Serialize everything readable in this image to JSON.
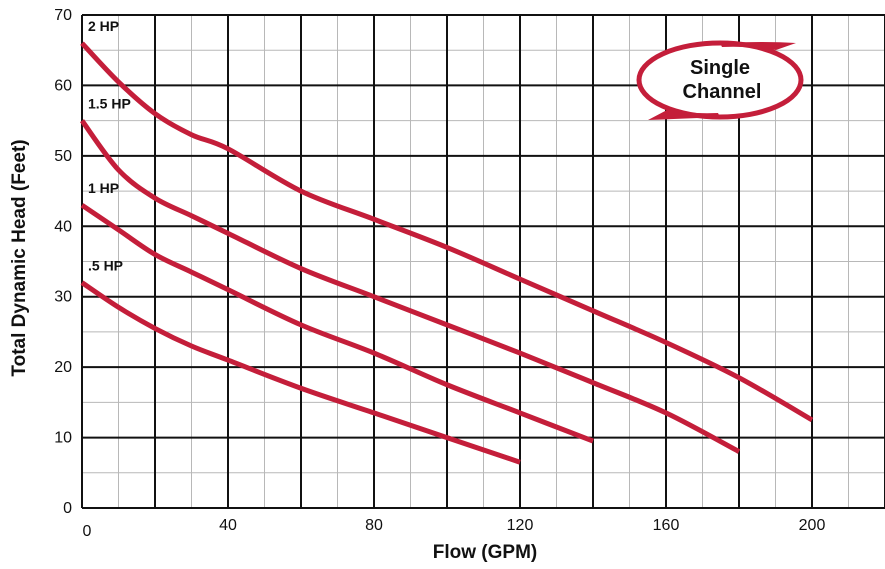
{
  "chart_data": {
    "type": "line",
    "title": "",
    "xlabel": "Flow (GPM)",
    "ylabel": "Total Dynamic Head (Feet)",
    "xlim": [
      0,
      220
    ],
    "ylim": [
      0,
      70
    ],
    "x_ticks": [
      0,
      40,
      80,
      120,
      160,
      200
    ],
    "y_ticks": [
      0,
      10,
      20,
      30,
      40,
      50,
      60,
      70
    ],
    "grid": true,
    "line_color": "#c41e3a",
    "series": [
      {
        "name": "2 HP",
        "points": [
          [
            0,
            66
          ],
          [
            10,
            60.5
          ],
          [
            20,
            56
          ],
          [
            30,
            53
          ],
          [
            40,
            51
          ],
          [
            60,
            45
          ],
          [
            80,
            41
          ],
          [
            100,
            37
          ],
          [
            120,
            32.5
          ],
          [
            140,
            28
          ],
          [
            160,
            23.5
          ],
          [
            180,
            18.5
          ],
          [
            200,
            12.5
          ]
        ]
      },
      {
        "name": "1.5 HP",
        "points": [
          [
            0,
            55
          ],
          [
            10,
            48
          ],
          [
            20,
            44
          ],
          [
            30,
            41.5
          ],
          [
            40,
            39
          ],
          [
            60,
            34
          ],
          [
            80,
            30
          ],
          [
            100,
            26
          ],
          [
            120,
            22
          ],
          [
            140,
            17.8
          ],
          [
            160,
            13.5
          ],
          [
            180,
            8
          ]
        ]
      },
      {
        "name": "1 HP",
        "points": [
          [
            0,
            43
          ],
          [
            10,
            39.5
          ],
          [
            20,
            36
          ],
          [
            30,
            33.5
          ],
          [
            40,
            31
          ],
          [
            60,
            26
          ],
          [
            80,
            22
          ],
          [
            100,
            17.5
          ],
          [
            120,
            13.5
          ],
          [
            140,
            9.5
          ]
        ]
      },
      {
        "name": ".5 HP",
        "points": [
          [
            0,
            32
          ],
          [
            10,
            28.5
          ],
          [
            20,
            25.5
          ],
          [
            30,
            23
          ],
          [
            40,
            21
          ],
          [
            60,
            17
          ],
          [
            80,
            13.5
          ],
          [
            100,
            10
          ],
          [
            120,
            6.5
          ]
        ]
      }
    ]
  },
  "badge": {
    "line1": "Single",
    "line2": "Channel"
  }
}
